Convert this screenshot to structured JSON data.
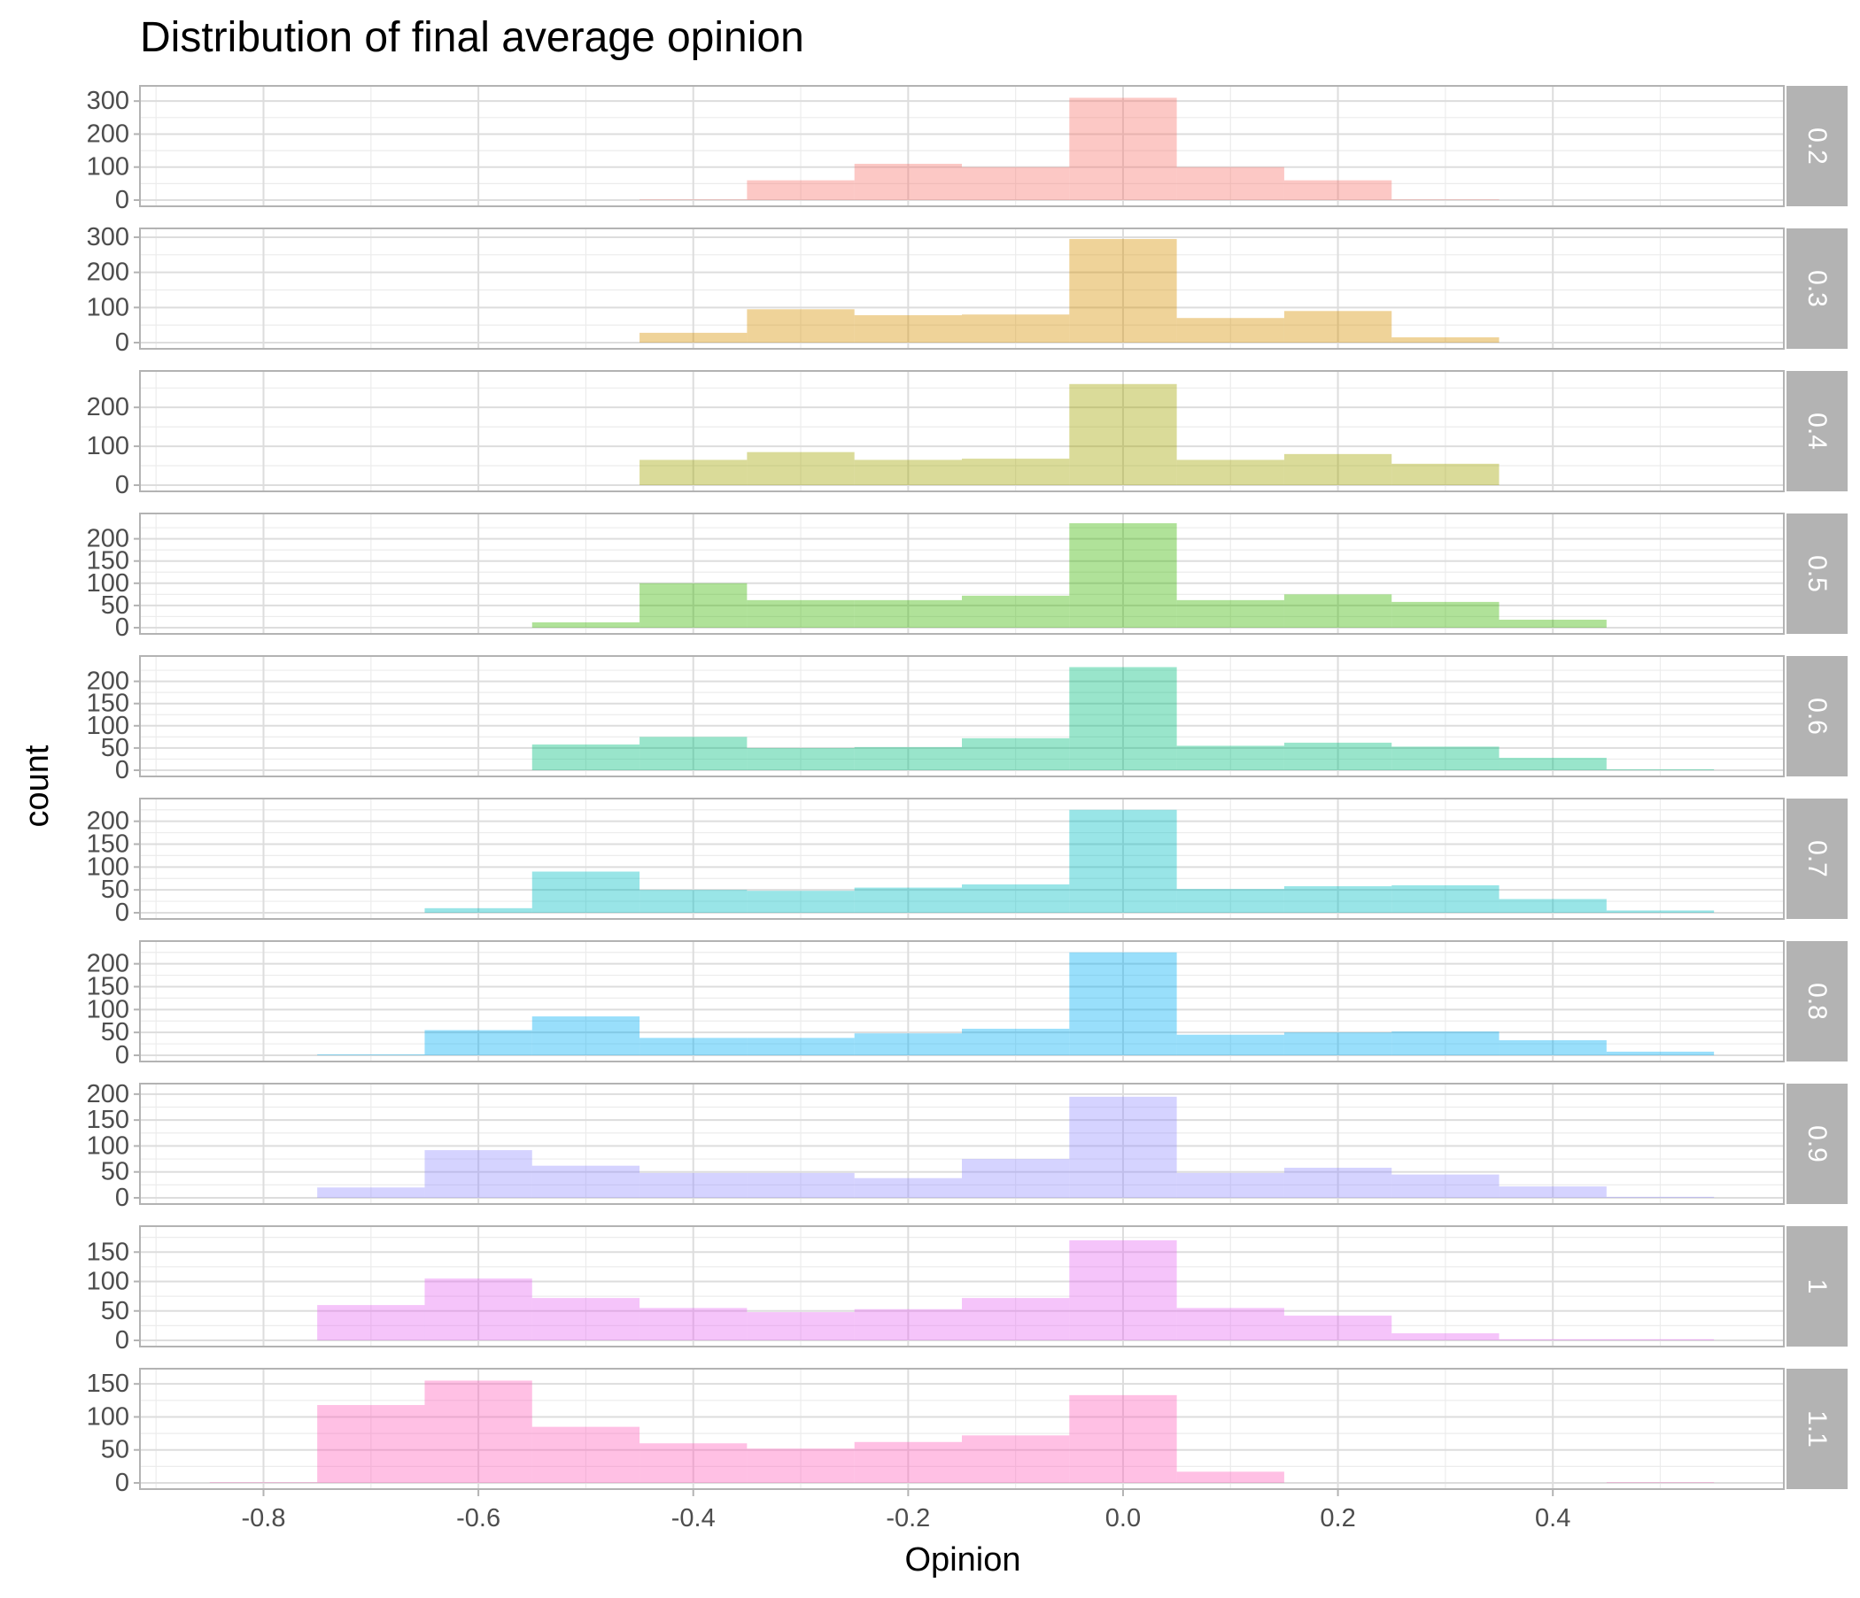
{
  "chart_data": {
    "type": "bar",
    "subtype": "faceted-histogram",
    "title": "Distribution of final average opinion",
    "xlabel": "Opinion",
    "ylabel": "count",
    "xlim": [
      -0.915,
      0.615
    ],
    "bin_width": 0.1,
    "bin_centers": [
      -0.8,
      -0.7,
      -0.6,
      -0.5,
      -0.4,
      -0.3,
      -0.2,
      -0.1,
      0.0,
      0.1,
      0.2,
      0.3,
      0.4,
      0.5
    ],
    "x_ticks": [
      "-0.8",
      "-0.6",
      "-0.4",
      "-0.2",
      "0.0",
      "0.2",
      "0.4"
    ],
    "x_tick_values": [
      -0.8,
      -0.6,
      -0.4,
      -0.2,
      0.0,
      0.2,
      0.4
    ],
    "grid": true,
    "legend": "none",
    "panels": [
      {
        "strip": "0.2",
        "color": "#F8766D",
        "ymax": 330,
        "y_ticks": [
          0,
          100,
          200,
          300
        ],
        "values": [
          0,
          0,
          0,
          0,
          2,
          60,
          110,
          100,
          310,
          100,
          60,
          2,
          0,
          0
        ]
      },
      {
        "strip": "0.3",
        "color": "#D89000",
        "ymax": 310,
        "y_ticks": [
          0,
          100,
          200,
          300
        ],
        "values": [
          0,
          0,
          0,
          0,
          28,
          95,
          78,
          80,
          295,
          70,
          90,
          15,
          0,
          0
        ]
      },
      {
        "strip": "0.4",
        "color": "#A3A500",
        "ymax": 280,
        "y_ticks": [
          0,
          100,
          200
        ],
        "values": [
          0,
          0,
          0,
          0,
          65,
          85,
          65,
          68,
          260,
          65,
          80,
          55,
          0,
          0
        ]
      },
      {
        "strip": "0.5",
        "color": "#39B600",
        "ymax": 245,
        "y_ticks": [
          0,
          50,
          100,
          150,
          200
        ],
        "values": [
          0,
          0,
          0,
          12,
          100,
          62,
          62,
          72,
          235,
          62,
          75,
          58,
          18,
          0
        ]
      },
      {
        "strip": "0.6",
        "color": "#00BF7D",
        "ymax": 245,
        "y_ticks": [
          0,
          50,
          100,
          150,
          200
        ],
        "values": [
          0,
          0,
          0,
          58,
          75,
          50,
          52,
          72,
          232,
          55,
          62,
          53,
          28,
          2
        ]
      },
      {
        "strip": "0.7",
        "color": "#00BFC4",
        "ymax": 238,
        "y_ticks": [
          0,
          50,
          100,
          150,
          200
        ],
        "values": [
          0,
          0,
          10,
          90,
          50,
          48,
          55,
          62,
          225,
          52,
          58,
          60,
          30,
          5
        ]
      },
      {
        "strip": "0.8",
        "color": "#00B0F6",
        "ymax": 238,
        "y_ticks": [
          0,
          50,
          100,
          150,
          200
        ],
        "values": [
          0,
          2,
          55,
          85,
          38,
          38,
          48,
          58,
          225,
          45,
          50,
          52,
          33,
          8
        ]
      },
      {
        "strip": "0.9",
        "color": "#9590FF",
        "ymax": 210,
        "y_ticks": [
          0,
          50,
          100,
          150,
          200
        ],
        "values": [
          0,
          20,
          92,
          62,
          48,
          48,
          38,
          75,
          195,
          48,
          58,
          45,
          22,
          2
        ]
      },
      {
        "strip": "1",
        "color": "#E76BF3",
        "ymax": 185,
        "y_ticks": [
          0,
          50,
          100,
          150
        ],
        "values": [
          0,
          60,
          105,
          72,
          55,
          48,
          53,
          72,
          170,
          55,
          42,
          12,
          2,
          2
        ]
      },
      {
        "strip": "1.1",
        "color": "#FF62BC",
        "ymax": 165,
        "y_ticks": [
          0,
          50,
          100,
          150
        ],
        "values": [
          1,
          118,
          155,
          85,
          60,
          52,
          62,
          72,
          133,
          17,
          0,
          0,
          0,
          1
        ]
      }
    ]
  }
}
